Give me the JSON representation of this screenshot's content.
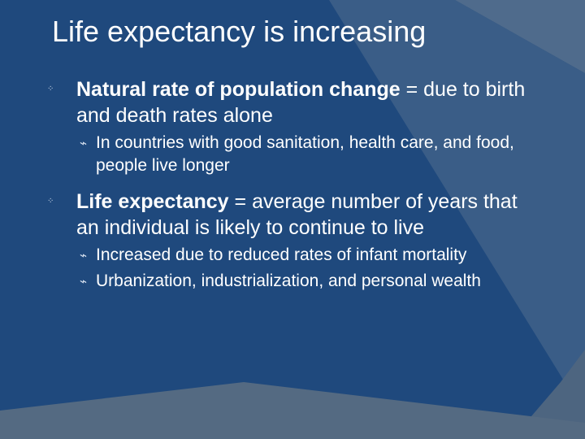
{
  "title": "Life expectancy is increasing",
  "bullets": [
    {
      "bold": "Natural rate of population change",
      "rest": " = due to birth and death rates alone",
      "subs": [
        "In countries with good sanitation, health care, and food, people live longer"
      ]
    },
    {
      "bold": "Life expectancy",
      "rest": " = average number of years that an individual is likely to continue to live",
      "subs": [
        "Increased due to reduced rates of infant mortality",
        "Urbanization, industrialization, and personal wealth"
      ]
    }
  ],
  "colors": {
    "background": "#1f497d",
    "decor_light": "#41668f",
    "decor_gray": "#5b6f85",
    "text": "#ffffff"
  }
}
